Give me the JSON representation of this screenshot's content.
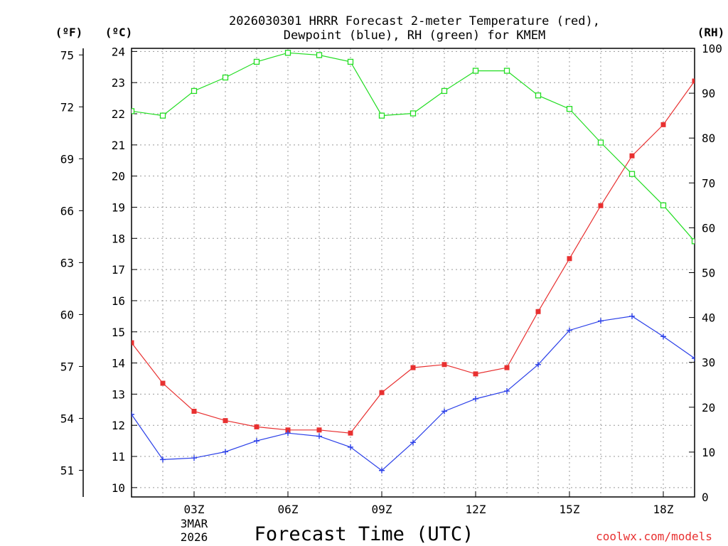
{
  "chart_data": {
    "type": "line",
    "title_line1": "2026030301 HRRR Forecast 2-meter Temperature (red),",
    "title_line2": "Dewpoint (blue), RH (green) for KMEM",
    "xlabel": "Forecast Time (UTC)",
    "credit": "coolwx.com/models",
    "units": {
      "fahrenheit": "(ºF)",
      "celsius": "(ºC)",
      "rh": "(RH)"
    },
    "x_range": [
      1,
      19
    ],
    "x_ticks": [
      {
        "x": 3,
        "label": "03Z",
        "sub1": "3MAR",
        "sub2": "2026"
      },
      {
        "x": 6,
        "label": "06Z"
      },
      {
        "x": 9,
        "label": "09Z"
      },
      {
        "x": 12,
        "label": "12Z"
      },
      {
        "x": 15,
        "label": "15Z"
      },
      {
        "x": 18,
        "label": "18Z"
      }
    ],
    "y_celsius": {
      "range": [
        9.7,
        24.1
      ],
      "ticks": [
        10,
        11,
        12,
        13,
        14,
        15,
        16,
        17,
        18,
        19,
        20,
        21,
        22,
        23,
        24
      ]
    },
    "y_fahrenheit": {
      "ticks": [
        51,
        54,
        57,
        60,
        63,
        66,
        69,
        72,
        75
      ]
    },
    "y_rh": {
      "range": [
        0,
        100
      ],
      "ticks": [
        0,
        10,
        20,
        30,
        40,
        50,
        60,
        70,
        80,
        90,
        100
      ]
    },
    "x": [
      1,
      2,
      3,
      4,
      5,
      6,
      7,
      8,
      9,
      10,
      11,
      12,
      13,
      14,
      15,
      16,
      17,
      18,
      19
    ],
    "series": [
      {
        "name": "Temperature",
        "axis": "celsius",
        "color": "#e83030",
        "marker": "filled-square",
        "values": [
          14.65,
          13.35,
          12.45,
          12.15,
          11.95,
          11.85,
          11.85,
          11.75,
          13.05,
          13.85,
          13.95,
          13.65,
          13.85,
          15.65,
          17.35,
          19.05,
          20.65,
          21.65,
          23.05
        ]
      },
      {
        "name": "Dewpoint",
        "axis": "celsius",
        "color": "#2a3fe8",
        "marker": "plus",
        "values": [
          12.35,
          10.9,
          10.95,
          11.15,
          11.5,
          11.75,
          11.65,
          11.3,
          10.55,
          11.45,
          12.45,
          12.85,
          13.1,
          13.95,
          15.05,
          15.35,
          15.5,
          14.85,
          14.15
        ]
      },
      {
        "name": "RH",
        "axis": "rh",
        "color": "#22dd22",
        "marker": "open-square",
        "values": [
          86,
          85,
          90.5,
          93.5,
          97,
          99,
          98.5,
          97,
          85,
          85.5,
          90.5,
          95,
          95,
          89.5,
          86.5,
          79,
          72,
          65,
          57
        ]
      }
    ]
  }
}
